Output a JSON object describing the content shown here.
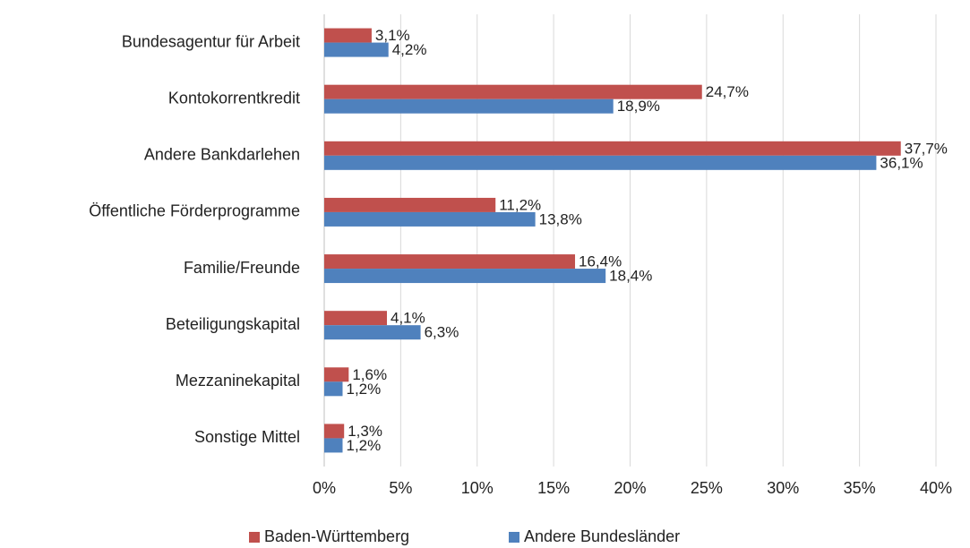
{
  "chart_data": {
    "type": "bar",
    "orientation": "horizontal",
    "categories": [
      "Bundesagentur für Arbeit",
      "Kontokorrentkredit",
      "Andere Bankdarlehen",
      "Öffentliche Förderprogramme",
      "Familie/Freunde",
      "Beteiligungskapital",
      "Mezzaninekapital",
      "Sonstige Mittel"
    ],
    "series": [
      {
        "name": "Baden-Württemberg",
        "color": "#c0504d",
        "values": [
          3.1,
          24.7,
          37.7,
          11.2,
          16.4,
          4.1,
          1.6,
          1.3
        ],
        "value_labels": [
          "3,1%",
          "24,7%",
          "37,7%",
          "11,2%",
          "16,4%",
          "4,1%",
          "1,6%",
          "1,3%"
        ]
      },
      {
        "name": "Andere Bundesländer",
        "color": "#4f81bd",
        "values": [
          4.2,
          18.9,
          36.1,
          13.8,
          18.4,
          6.3,
          1.2,
          1.2
        ],
        "value_labels": [
          "4,2%",
          "18,9%",
          "36,1%",
          "13,8%",
          "18,4%",
          "6,3%",
          "1,2%",
          "1,2%"
        ]
      }
    ],
    "xlim": [
      0,
      40
    ],
    "xticks": [
      {
        "value": 0,
        "label": "0%"
      },
      {
        "value": 5,
        "label": "5%"
      },
      {
        "value": 10,
        "label": "10%"
      },
      {
        "value": 15,
        "label": "15%"
      },
      {
        "value": 20,
        "label": "20%"
      },
      {
        "value": 25,
        "label": "25%"
      },
      {
        "value": 30,
        "label": "30%"
      },
      {
        "value": 35,
        "label": "35%"
      },
      {
        "value": 40,
        "label": "40%"
      }
    ],
    "grid": true,
    "legend": "bottom"
  }
}
